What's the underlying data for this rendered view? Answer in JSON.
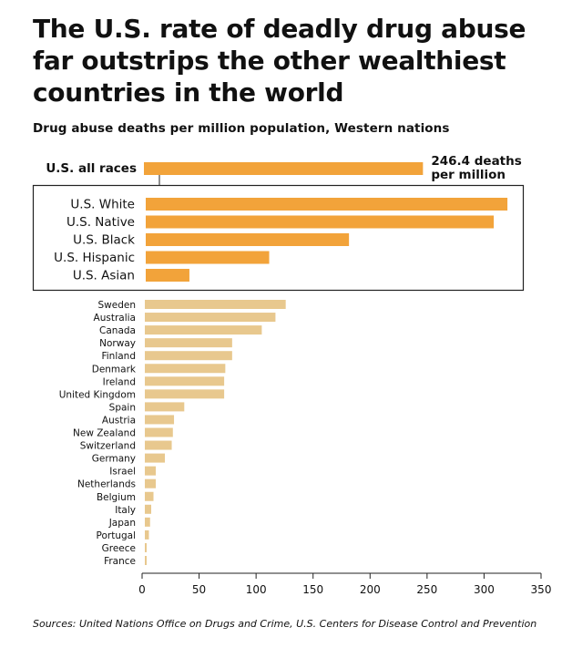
{
  "title": "The U.S. rate of deadly drug abuse far outstrips the other wealthiest countries in the world",
  "subtitle": "Drug abuse deaths per million population, Western nations",
  "source": "Sources: United Nations Office on Drugs and Crime, U.S. Centers for Disease Control and Prevention",
  "colors": {
    "us_bar": "#f2a33a",
    "country_bar": "#e8c88e",
    "box_border": "#222222",
    "axis": "#222222"
  },
  "chart_data": {
    "type": "bar",
    "orientation": "horizontal",
    "xlim": [
      0,
      350
    ],
    "xticks": [
      0,
      50,
      100,
      150,
      200,
      250,
      300,
      350
    ],
    "grid": false,
    "annotation": {
      "category": "U.S. all races",
      "line1": "246.4 deaths",
      "line2": "per million"
    },
    "us_total": {
      "category": "U.S. all races",
      "value": 246.4
    },
    "us_groups": [
      {
        "category": "U.S. White",
        "value": 320.5
      },
      {
        "category": "U.S. Native",
        "value": 308.5
      },
      {
        "category": "U.S. Black",
        "value": 181.5
      },
      {
        "category": "U.S. Hispanic",
        "value": 111.5
      },
      {
        "category": "U.S. Asian",
        "value": 41.5
      }
    ],
    "countries": [
      {
        "category": "Sweden",
        "value": 126
      },
      {
        "category": "Australia",
        "value": 117
      },
      {
        "category": "Canada",
        "value": 105
      },
      {
        "category": "Norway",
        "value": 79
      },
      {
        "category": "Finland",
        "value": 79
      },
      {
        "category": "Denmark",
        "value": 73
      },
      {
        "category": "Ireland",
        "value": 72
      },
      {
        "category": "United Kingdom",
        "value": 72
      },
      {
        "category": "Spain",
        "value": 37
      },
      {
        "category": "Austria",
        "value": 28
      },
      {
        "category": "New Zealand",
        "value": 27
      },
      {
        "category": "Switzerland",
        "value": 26
      },
      {
        "category": "Germany",
        "value": 20
      },
      {
        "category": "Israel",
        "value": 12
      },
      {
        "category": "Netherlands",
        "value": 12
      },
      {
        "category": "Belgium",
        "value": 10
      },
      {
        "category": "Italy",
        "value": 8
      },
      {
        "category": "Japan",
        "value": 7
      },
      {
        "category": "Portugal",
        "value": 6
      },
      {
        "category": "Greece",
        "value": 4
      },
      {
        "category": "France",
        "value": 4
      }
    ]
  }
}
